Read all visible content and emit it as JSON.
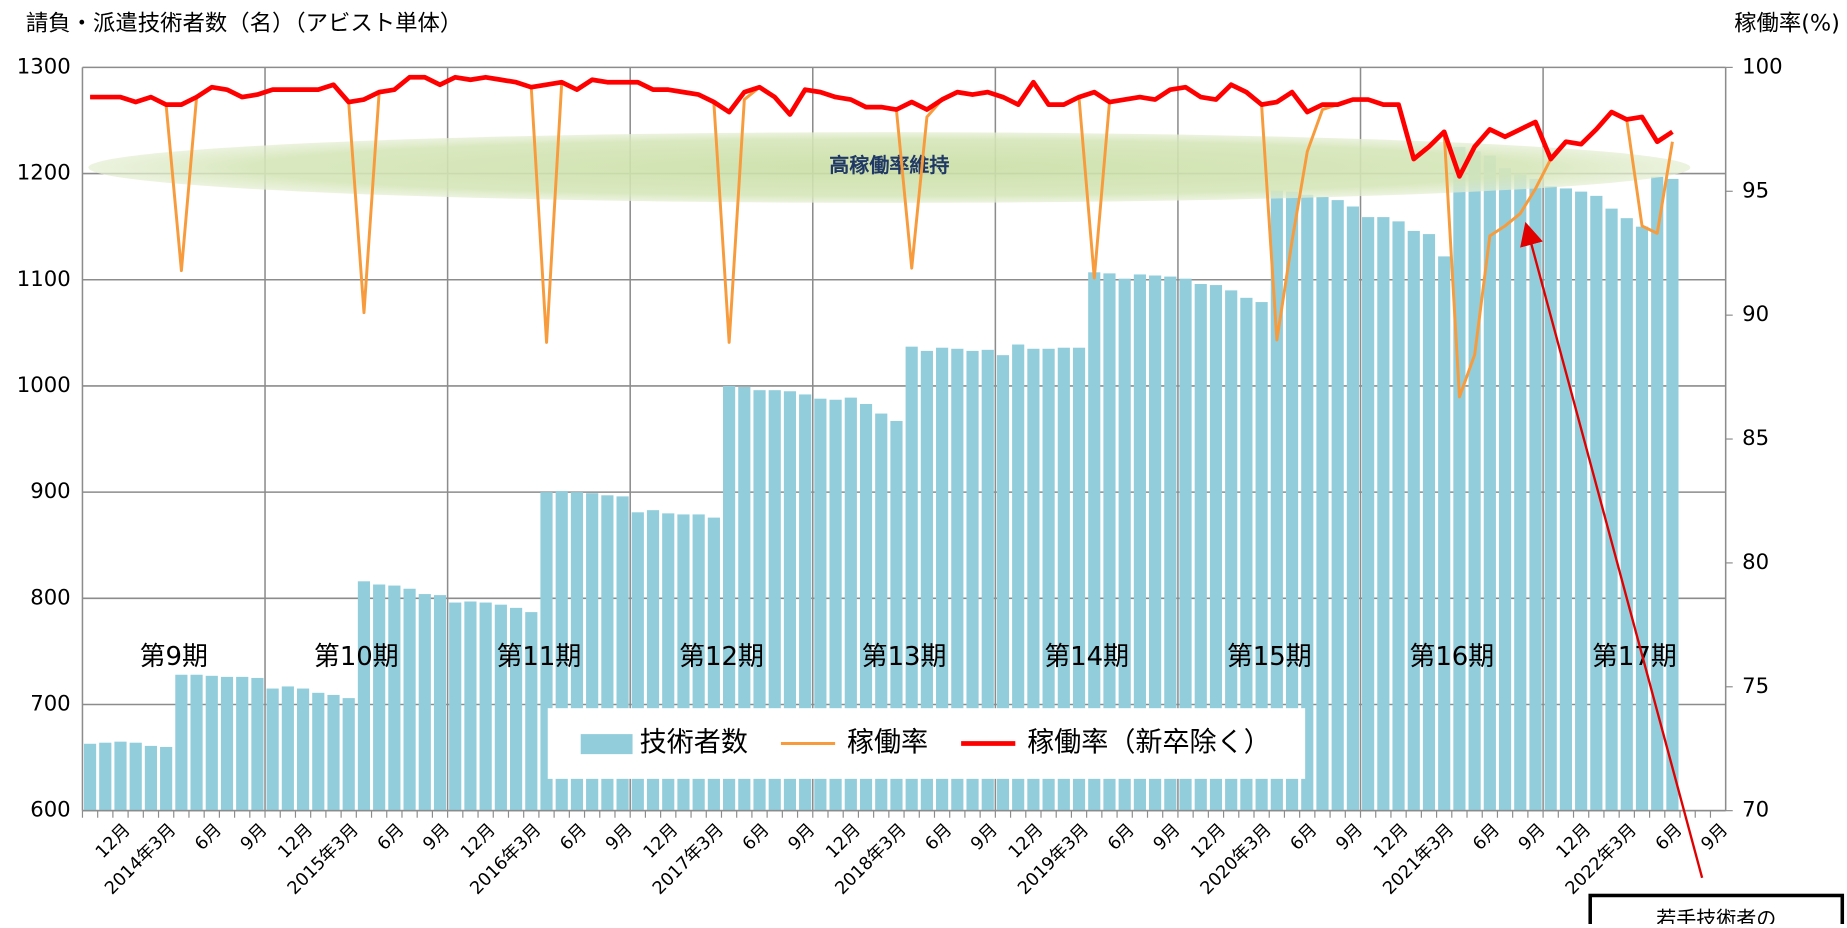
{
  "chart_data": {
    "type": "bar_line",
    "y_label": "請負・派遣技術者数（名）（アビスト単体）",
    "y2_label": "稼働率(%)",
    "annotation": "高稼働率維持",
    "callout": "若手技術者の",
    "period_labels": [
      "第9期",
      "第10期",
      "第11期",
      "第12期",
      "第13期",
      "第14期",
      "第15期",
      "第16期",
      "第17期"
    ],
    "categories": [
      null,
      null,
      "12月",
      null,
      null,
      "2014年3月",
      null,
      null,
      "6月",
      null,
      null,
      "9月",
      null,
      null,
      "12月",
      null,
      null,
      "2015年3月",
      null,
      null,
      "6月",
      null,
      null,
      "9月",
      null,
      null,
      "12月",
      null,
      null,
      "2016年3月",
      null,
      null,
      "6月",
      null,
      null,
      "9月",
      null,
      null,
      "12月",
      null,
      null,
      "2017年3月",
      null,
      null,
      "6月",
      null,
      null,
      "9月",
      null,
      null,
      "12月",
      null,
      null,
      "2018年3月",
      null,
      null,
      "6月",
      null,
      null,
      "9月",
      null,
      null,
      "12月",
      null,
      null,
      "2019年3月",
      null,
      null,
      "6月",
      null,
      null,
      "9月",
      null,
      null,
      "12月",
      null,
      null,
      "2020年3月",
      null,
      null,
      "6月",
      null,
      null,
      "9月",
      null,
      null,
      "12月",
      null,
      null,
      "2021年3月",
      null,
      null,
      "6月",
      null,
      null,
      "9月",
      null,
      null,
      "12月",
      null,
      null,
      "2022年3月",
      null,
      null,
      "6月",
      null,
      null,
      "9月"
    ],
    "ylim": [
      600,
      1300
    ],
    "yticks": [
      600,
      700,
      800,
      900,
      1000,
      1100,
      1200,
      1300
    ],
    "y2lim": [
      70,
      100
    ],
    "y2ticks": [
      70,
      75,
      80,
      85,
      90,
      95,
      100
    ],
    "grid": true,
    "series": [
      {
        "name": "技術者数",
        "type": "bar",
        "color": "#92cddc",
        "values": [
          663,
          664,
          665,
          664,
          661,
          660,
          728,
          728,
          727,
          726,
          726,
          725,
          715,
          717,
          715,
          711,
          709,
          706,
          816,
          813,
          812,
          809,
          804,
          803,
          796,
          797,
          796,
          794,
          791,
          787,
          900,
          901,
          900,
          899,
          897,
          896,
          881,
          883,
          880,
          879,
          879,
          876,
          1000,
          999,
          996,
          996,
          995,
          992,
          988,
          987,
          989,
          983,
          974,
          967,
          1037,
          1033,
          1036,
          1035,
          1033,
          1034,
          1029,
          1039,
          1035,
          1035,
          1036,
          1036,
          1107,
          1106,
          1101,
          1105,
          1104,
          1103,
          1101,
          1096,
          1095,
          1090,
          1083,
          1079,
          1184,
          1183,
          1180,
          1178,
          1175,
          1169,
          1159,
          1159,
          1155,
          1146,
          1143,
          1122,
          1225,
          1221,
          1217,
          1205,
          1200,
          1195,
          1188,
          1186,
          1183,
          1179,
          1167,
          1158,
          1150,
          1197,
          1195,
          null,
          null,
          null
        ]
      },
      {
        "name": "稼働率",
        "type": "line",
        "axis": "y2",
        "color": "#f79b3c",
        "values": [
          98.8,
          98.8,
          98.8,
          98.6,
          98.8,
          98.5,
          91.8,
          98.8,
          99.2,
          99.1,
          98.8,
          98.9,
          99.1,
          99.1,
          99.1,
          99.1,
          99.3,
          98.6,
          90.1,
          99.0,
          99.1,
          99.6,
          99.6,
          99.3,
          99.6,
          99.5,
          99.6,
          99.5,
          99.4,
          99.2,
          88.9,
          99.4,
          99.1,
          99.5,
          99.4,
          99.4,
          99.4,
          99.1,
          99.1,
          99.0,
          98.9,
          98.6,
          88.9,
          98.7,
          99.2,
          98.8,
          98.1,
          99.1,
          99.0,
          98.8,
          98.7,
          98.4,
          98.4,
          98.3,
          91.9,
          98.0,
          98.7,
          99.0,
          98.9,
          99.0,
          98.8,
          98.5,
          99.4,
          98.5,
          98.5,
          98.8,
          91.5,
          98.6,
          98.7,
          98.8,
          98.7,
          99.1,
          99.2,
          98.8,
          98.7,
          99.3,
          99.0,
          98.5,
          89.0,
          93.0,
          96.6,
          98.3,
          98.5,
          98.7,
          98.7,
          98.5,
          98.5,
          96.3,
          96.8,
          97.4,
          86.7,
          88.4,
          93.2,
          93.6,
          94.1,
          95.1,
          96.3,
          97.0,
          96.9,
          97.5,
          98.2,
          97.9,
          93.6,
          93.3,
          97.0,
          null,
          null,
          null
        ]
      },
      {
        "name": "稼働率（新卒除く）",
        "type": "line",
        "axis": "y2",
        "color": "#ff0000",
        "values": [
          98.8,
          98.8,
          98.8,
          98.6,
          98.8,
          98.5,
          98.5,
          98.8,
          99.2,
          99.1,
          98.8,
          98.9,
          99.1,
          99.1,
          99.1,
          99.1,
          99.3,
          98.6,
          98.7,
          99.0,
          99.1,
          99.6,
          99.6,
          99.3,
          99.6,
          99.5,
          99.6,
          99.5,
          99.4,
          99.2,
          99.3,
          99.4,
          99.1,
          99.5,
          99.4,
          99.4,
          99.4,
          99.1,
          99.1,
          99.0,
          98.9,
          98.6,
          98.2,
          99.0,
          99.2,
          98.8,
          98.1,
          99.1,
          99.0,
          98.8,
          98.7,
          98.4,
          98.4,
          98.3,
          98.6,
          98.3,
          98.7,
          99.0,
          98.9,
          99.0,
          98.8,
          98.5,
          99.4,
          98.5,
          98.5,
          98.8,
          99.0,
          98.6,
          98.7,
          98.8,
          98.7,
          99.1,
          99.2,
          98.8,
          98.7,
          99.3,
          99.0,
          98.5,
          98.6,
          99.0,
          98.2,
          98.5,
          98.5,
          98.7,
          98.7,
          98.5,
          98.5,
          96.3,
          96.8,
          97.4,
          95.6,
          96.8,
          97.5,
          97.2,
          97.5,
          97.8,
          96.3,
          97.0,
          96.9,
          97.5,
          98.2,
          97.9,
          98.0,
          97.0,
          97.4,
          null,
          null,
          null
        ]
      }
    ]
  }
}
